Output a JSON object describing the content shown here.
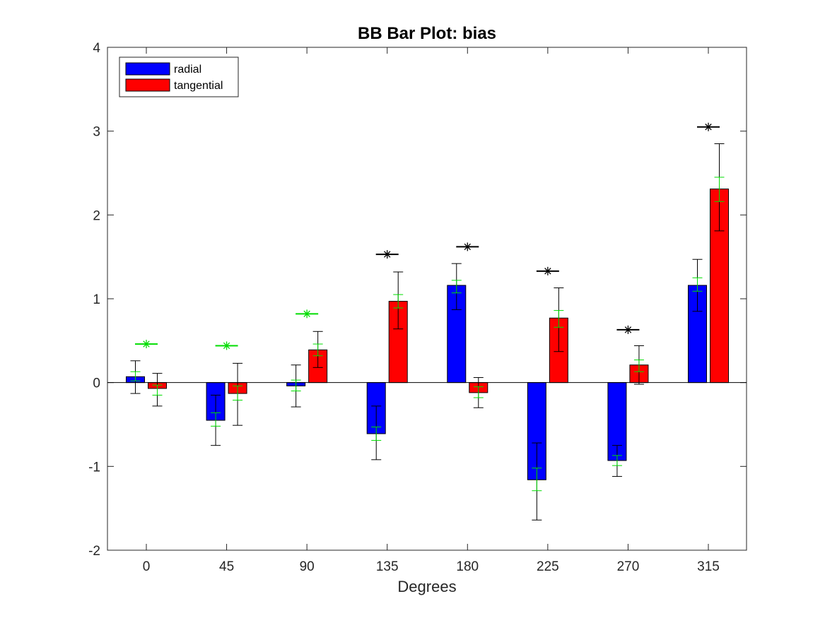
{
  "chart_data": {
    "type": "bar",
    "title": "BB Bar Plot: bias",
    "xlabel": "Degrees",
    "ylabel": "",
    "ylim": [
      -2,
      4
    ],
    "yticks": [
      -2,
      -1,
      0,
      1,
      2,
      3,
      4
    ],
    "categories": [
      "0",
      "45",
      "90",
      "135",
      "180",
      "225",
      "270",
      "315"
    ],
    "legend_position": "top-left",
    "grid": false,
    "series": [
      {
        "name": "radial",
        "color": "#0000ff",
        "values": [
          0.07,
          -0.45,
          -0.04,
          -0.61,
          1.16,
          -1.16,
          -0.93,
          1.16
        ],
        "err_black": [
          [
            -0.13,
            0.26
          ],
          [
            -0.75,
            -0.15
          ],
          [
            -0.29,
            0.21
          ],
          [
            -0.92,
            -0.28
          ],
          [
            0.87,
            1.42
          ],
          [
            -1.64,
            -0.72
          ],
          [
            -1.12,
            -0.75
          ],
          [
            0.85,
            1.47
          ]
        ],
        "err_green": [
          [
            0.02,
            0.13
          ],
          [
            -0.52,
            -0.36
          ],
          [
            -0.1,
            0.03
          ],
          [
            -0.69,
            -0.53
          ],
          [
            1.07,
            1.22
          ],
          [
            -1.29,
            -1.02
          ],
          [
            -0.99,
            -0.87
          ],
          [
            1.09,
            1.25
          ]
        ]
      },
      {
        "name": "tangential",
        "color": "#ff0000",
        "values": [
          -0.07,
          -0.13,
          0.39,
          0.97,
          -0.12,
          0.77,
          0.21,
          2.31
        ],
        "err_black": [
          [
            -0.28,
            0.11
          ],
          [
            -0.51,
            0.23
          ],
          [
            0.18,
            0.61
          ],
          [
            0.64,
            1.32
          ],
          [
            -0.3,
            0.06
          ],
          [
            0.37,
            1.13
          ],
          [
            -0.02,
            0.44
          ],
          [
            1.81,
            2.85
          ]
        ],
        "err_green": [
          [
            -0.15,
            -0.03
          ],
          [
            -0.21,
            -0.04
          ],
          [
            0.32,
            0.46
          ],
          [
            0.89,
            1.05
          ],
          [
            -0.18,
            -0.05
          ],
          [
            0.66,
            0.86
          ],
          [
            0.13,
            0.27
          ],
          [
            2.16,
            2.45
          ]
        ]
      }
    ],
    "significance_markers": [
      {
        "category": "0",
        "y": 0.46,
        "color": "#00dd00"
      },
      {
        "category": "45",
        "y": 0.44,
        "color": "#00dd00"
      },
      {
        "category": "90",
        "y": 0.82,
        "color": "#00dd00"
      },
      {
        "category": "135",
        "y": 1.53,
        "color": "#000000"
      },
      {
        "category": "180",
        "y": 1.62,
        "color": "#000000"
      },
      {
        "category": "225",
        "y": 1.33,
        "color": "#000000"
      },
      {
        "category": "270",
        "y": 0.63,
        "color": "#000000"
      },
      {
        "category": "315",
        "y": 3.05,
        "color": "#000000"
      }
    ]
  }
}
